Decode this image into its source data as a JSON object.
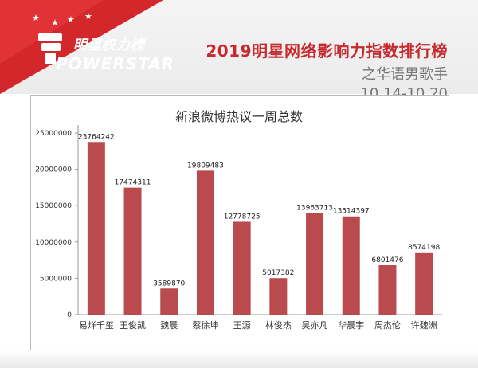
{
  "header": {
    "logo_cn": "明星权力榜",
    "logo_en": "POWERSTAR",
    "title": "2019明星网络影响力指数排行榜",
    "subtitle": "之华语男歌手",
    "date_range": "10.14-10.20"
  },
  "colors": {
    "bar": "#b94a4e",
    "brand_red": "#d4272c"
  },
  "chart_data": {
    "type": "bar",
    "title": "新浪微博热议一周总数",
    "categories": [
      "易烊千玺",
      "王俊凯",
      "魏晨",
      "蔡徐坤",
      "王源",
      "林俊杰",
      "吴亦凡",
      "华晨宇",
      "周杰伦",
      "许魏洲"
    ],
    "values": [
      23764242,
      17474311,
      3589870,
      19809483,
      12778725,
      5017382,
      13963713,
      13514397,
      6801476,
      8574198
    ],
    "yticks": [
      "0",
      "5000000",
      "10000000",
      "15000000",
      "20000000",
      "25000000"
    ],
    "ylim": [
      0,
      25000000
    ],
    "grid": false,
    "xlabel": "",
    "ylabel": ""
  }
}
